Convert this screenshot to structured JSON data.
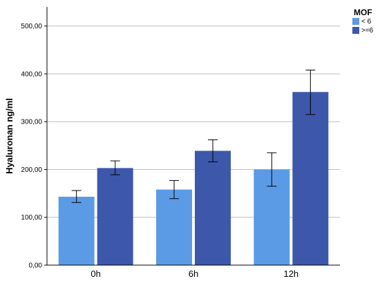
{
  "chart_data": {
    "type": "bar",
    "categories": [
      "0h",
      "6h",
      "12h"
    ],
    "series": [
      {
        "name": "< 6",
        "color": "#5b9be6",
        "values": [
          143,
          158,
          200
        ],
        "error_low": [
          131,
          139,
          165
        ],
        "error_high": [
          156,
          177,
          235
        ]
      },
      {
        "name": ">=6",
        "color": "#3d57ab",
        "values": [
          203,
          239,
          362
        ],
        "error_low": [
          189,
          216,
          315
        ],
        "error_high": [
          218,
          262,
          408
        ]
      }
    ],
    "title": "",
    "xlabel": "",
    "ylabel": "Hyaluronan ng/ml",
    "ylim": [
      0,
      540
    ],
    "yticks": [
      0,
      100,
      200,
      300,
      400,
      500
    ],
    "ytick_labels": [
      "0,00",
      "100,00",
      "200,00",
      "300,00",
      "400,00",
      "500,00"
    ],
    "grid": true,
    "legend_title": "MOF",
    "legend_position": "top-right"
  }
}
